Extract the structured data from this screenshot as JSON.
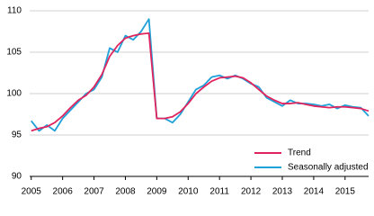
{
  "chart_data": {
    "type": "line",
    "x": [
      2005,
      2005.25,
      2005.5,
      2005.75,
      2006,
      2006.25,
      2006.5,
      2006.75,
      2007,
      2007.25,
      2007.5,
      2007.75,
      2008,
      2008.25,
      2008.5,
      2008.75,
      2009,
      2009.25,
      2009.5,
      2009.75,
      2010,
      2010.25,
      2010.5,
      2010.75,
      2011,
      2011.25,
      2011.5,
      2011.75,
      2012,
      2012.25,
      2012.5,
      2012.75,
      2013,
      2013.25,
      2013.5,
      2013.75,
      2014,
      2014.25,
      2014.5,
      2014.75,
      2015,
      2015.25,
      2015.5,
      2015.75
    ],
    "series": [
      {
        "name": "Trend",
        "color": "#e0245e",
        "values": [
          95.5,
          95.8,
          96.0,
          96.5,
          97.3,
          98.3,
          99.2,
          99.8,
          100.8,
          102.3,
          104.5,
          105.8,
          106.7,
          107.0,
          107.2,
          107.3,
          97.0,
          97.0,
          97.2,
          97.8,
          98.8,
          100.0,
          100.8,
          101.5,
          101.9,
          102.0,
          102.1,
          101.9,
          101.3,
          100.5,
          99.7,
          99.2,
          98.8,
          98.8,
          98.9,
          98.7,
          98.5,
          98.4,
          98.3,
          98.4,
          98.4,
          98.3,
          98.2,
          97.9
        ]
      },
      {
        "name": "Seasonally adjusted",
        "color": "#1fa1d9",
        "values": [
          96.7,
          95.5,
          96.2,
          95.5,
          97.0,
          98.0,
          99.0,
          100.0,
          100.5,
          102.0,
          105.5,
          105.0,
          107.0,
          106.5,
          107.5,
          109.0,
          97.0,
          97.0,
          96.5,
          97.5,
          99.0,
          100.5,
          101.0,
          102.0,
          102.2,
          101.8,
          102.2,
          101.8,
          101.2,
          100.8,
          99.5,
          99.0,
          98.5,
          99.2,
          98.8,
          98.8,
          98.7,
          98.5,
          98.7,
          98.2,
          98.6,
          98.4,
          98.3,
          97.3
        ]
      }
    ],
    "xlim": [
      2004.95,
      2015.75
    ],
    "xticks": [
      2005,
      2006,
      2007,
      2008,
      2009,
      2010,
      2011,
      2012,
      2013,
      2014,
      2015
    ],
    "ylim": [
      90,
      110
    ],
    "yticks": [
      90,
      95,
      100,
      105,
      110
    ],
    "grid": true,
    "legend": "lower right"
  }
}
